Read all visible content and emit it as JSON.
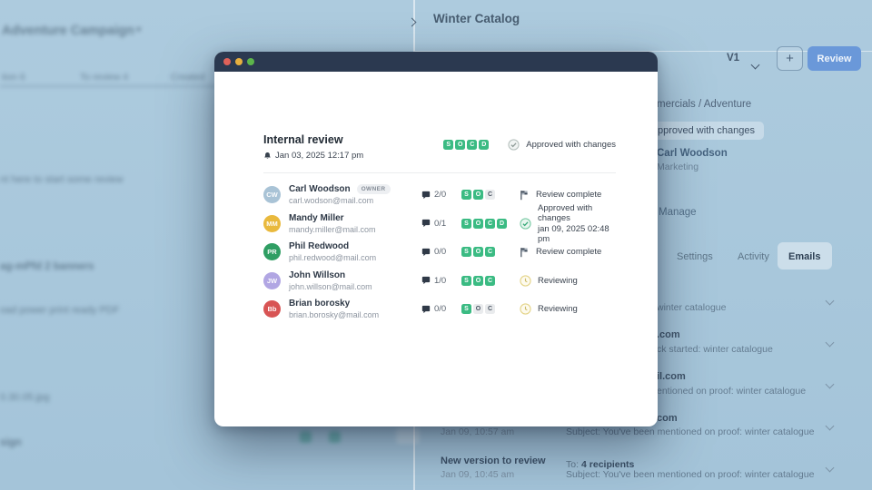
{
  "colors": {
    "accent_green": "#3bbb83",
    "button_blue": "#6a98d9",
    "modal_header_navy": "#2b3950",
    "overlay_blue": "#a7c6db"
  },
  "page": {
    "title": "Winter Catalog",
    "version_label": "V1",
    "add_button_label": "+",
    "review_button_label": "Review"
  },
  "left_panel": {
    "campaign_title": "Adventure Campaign",
    "campaign_caret": "▾",
    "tab_1": "tion 6",
    "tab_2": "To review 4",
    "tab_3": "Created",
    "hint_line": "nt here to start some review",
    "item_banners": "ag-mPfd 2 banners",
    "item_pdf": "oad power print ready PDF",
    "item_image": "0.30.05.jpg",
    "item_design": "sign"
  },
  "right_panel": {
    "breadcrumb_fragment": "mercials / Adventure",
    "status_badge_fragment": "pproved with changes",
    "owner_name": "Carl Woodson",
    "owner_role": "Marketing",
    "manage_fragment": ") Manage",
    "tab_settings": "Settings",
    "tab_activity": "Activity",
    "tab_emails": "Emails",
    "emails": {
      "row1_subject_fragment": "winter catalogue",
      "row2_sender_fragment": ".com",
      "row2_subject_fragment": "ck started: winter catalogue",
      "row3_sender_fragment": "il.com",
      "row3_subject_fragment": "entioned on proof: winter catalogue",
      "row4_sender_fragment": "com",
      "row4_time": "Jan 09, 10:57 am",
      "row4_subject": "Subject: You've been mentioned on proof: winter catalogue",
      "row5_title": "New version to review",
      "row5_time": "Jan 09, 10:45 am",
      "row5_to_label": "To:",
      "row5_to_value": "4 recipients",
      "row5_subject": "Subject: You've been mentioned on proof: winter catalogue"
    }
  },
  "modal": {
    "title": "Internal review",
    "date": "Jan 03, 2025 12:17 pm",
    "overall_status": "Approved with changes",
    "header_badges": [
      [
        "S",
        1
      ],
      [
        "O",
        1
      ],
      [
        "C",
        1
      ],
      [
        "D",
        1
      ]
    ],
    "reviewers": [
      {
        "name": "Carl Woodson",
        "tag": "OWNER",
        "email": "carl.wodson@mail.com",
        "comments": "2/0",
        "badges": [
          [
            "S",
            1
          ],
          [
            "O",
            1
          ],
          [
            "C",
            0
          ]
        ],
        "icon": "flag",
        "status": "Review complete",
        "avatar": {
          "bg": "#a9c3d6",
          "initials": "CW"
        }
      },
      {
        "name": "Mandy Miller",
        "email": "mandy.miller@mail.com",
        "comments": "0/1",
        "badges": [
          [
            "S",
            1
          ],
          [
            "O",
            1
          ],
          [
            "C",
            1
          ],
          [
            "D",
            1
          ]
        ],
        "icon": "check",
        "status": "Approved with changes",
        "status_sub": "jan 09, 2025 02:48 pm",
        "avatar": {
          "bg": "#e9b93d",
          "initials": "MM"
        }
      },
      {
        "name": "Phil Redwood",
        "email": "phil.redwood@mail.com",
        "comments": "0/0",
        "badges": [
          [
            "S",
            1
          ],
          [
            "O",
            1
          ],
          [
            "C",
            1
          ]
        ],
        "icon": "flag",
        "status": "Review complete",
        "avatar": {
          "bg": "#2f9e63",
          "initials": "PR"
        }
      },
      {
        "name": "John Willson",
        "email": "john.willson@mail.com",
        "comments": "1/0",
        "badges": [
          [
            "S",
            1
          ],
          [
            "O",
            1
          ],
          [
            "C",
            1
          ]
        ],
        "icon": "clock",
        "status": "Reviewing",
        "avatar": {
          "bg": "#b1a6e3",
          "initials": "JW"
        }
      },
      {
        "name": "Brian borosky",
        "email": "brian.borosky@mail.com",
        "comments": "0/0",
        "badges": [
          [
            "S",
            1
          ],
          [
            "O",
            0
          ],
          [
            "C",
            0
          ]
        ],
        "icon": "clock",
        "status": "Reviewing",
        "avatar": {
          "bg": "#d85454",
          "initials": "Bb"
        }
      }
    ]
  }
}
